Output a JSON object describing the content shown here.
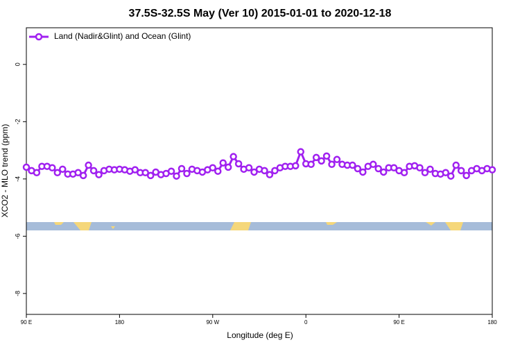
{
  "chart_data": {
    "type": "line",
    "title": "37.5S-32.5S May (Ver 10)   2015-01-01 to 2020-12-18",
    "x_label": "Longitude (deg E)",
    "y_label": "XCO2 - MLO trend (ppm)",
    "x": [
      90,
      95,
      100,
      105,
      110,
      115,
      120,
      125,
      130,
      135,
      140,
      145,
      150,
      155,
      160,
      165,
      170,
      175,
      180,
      185,
      190,
      195,
      200,
      205,
      210,
      215,
      220,
      225,
      230,
      235,
      240,
      245,
      250,
      255,
      260,
      265,
      270,
      275,
      280,
      285,
      290,
      295,
      300,
      305,
      310,
      315,
      320,
      325,
      330,
      335,
      340,
      345,
      350,
      355,
      360,
      365,
      370,
      375,
      380,
      385,
      390,
      395,
      400,
      405,
      410,
      415,
      420,
      425,
      430,
      435,
      440,
      445,
      450,
      455,
      460,
      465,
      470,
      475,
      480,
      485,
      490,
      495,
      500,
      505,
      510,
      515,
      520,
      525,
      530,
      535,
      540
    ],
    "series": [
      {
        "name": "Land (Nadir&Glint) and Ocean (Glint)",
        "color": "#a020f0",
        "values": [
          -3.59,
          -3.71,
          -3.78,
          -3.56,
          -3.56,
          -3.61,
          -3.78,
          -3.66,
          -3.83,
          -3.83,
          -3.78,
          -3.88,
          -3.52,
          -3.71,
          -3.85,
          -3.71,
          -3.66,
          -3.68,
          -3.66,
          -3.68,
          -3.73,
          -3.68,
          -3.78,
          -3.78,
          -3.88,
          -3.76,
          -3.85,
          -3.81,
          -3.73,
          -3.9,
          -3.64,
          -3.81,
          -3.66,
          -3.71,
          -3.76,
          -3.68,
          -3.61,
          -3.73,
          -3.44,
          -3.59,
          -3.22,
          -3.47,
          -3.66,
          -3.61,
          -3.76,
          -3.66,
          -3.71,
          -3.85,
          -3.71,
          -3.61,
          -3.56,
          -3.56,
          -3.54,
          -3.05,
          -3.47,
          -3.49,
          -3.25,
          -3.37,
          -3.2,
          -3.49,
          -3.32,
          -3.49,
          -3.52,
          -3.52,
          -3.64,
          -3.76,
          -3.56,
          -3.49,
          -3.64,
          -3.76,
          -3.61,
          -3.61,
          -3.71,
          -3.78,
          -3.56,
          -3.54,
          -3.61,
          -3.78,
          -3.66,
          -3.81,
          -3.83,
          -3.78,
          -3.9,
          -3.52,
          -3.71,
          -3.88,
          -3.71,
          -3.64,
          -3.71,
          -3.64,
          -3.68
        ]
      }
    ],
    "xlim": [
      90,
      540
    ],
    "xticks": [
      {
        "value": 90,
        "label": "90 E"
      },
      {
        "value": 180,
        "label": "180"
      },
      {
        "value": 270,
        "label": "90 W"
      },
      {
        "value": 360,
        "label": "0"
      },
      {
        "value": 450,
        "label": "90 E"
      },
      {
        "value": 540,
        "label": "180"
      }
    ],
    "ylim": [
      -8.73,
      1.28
    ],
    "yticks": [
      0,
      -2,
      -4,
      -6,
      -8
    ],
    "legend": "top-left",
    "grid": false
  }
}
